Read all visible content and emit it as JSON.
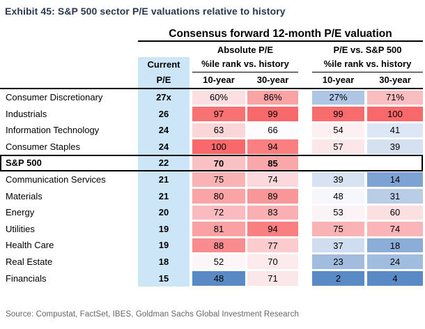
{
  "exhibit_title": "Exhibit 45: S&P 500 sector P/E valuations relative to history",
  "source": "Source: Compustat, FactSet, IBES, Goldman Sachs Global Investment Research",
  "colors": {
    "title": "#28394E",
    "source_text": "#63666A",
    "current_pe_bg": "#CCE6F8",
    "scale_low": "#5A8AC6",
    "scale_mid": "#FCFCFF",
    "scale_high": "#F8696B"
  },
  "chart_data": {
    "type": "table",
    "title": "Consensus forward 12-month P/E valuation",
    "group_headers": [
      "Absolute P/E",
      "P/E vs. S&P 500"
    ],
    "current_pe_header": [
      "Current",
      "P/E"
    ],
    "pctile_header": "%ile rank vs. history",
    "column_keys": [
      "abs_10yr",
      "abs_30yr",
      "vs_10yr",
      "vs_30yr"
    ],
    "column_labels": [
      "10-year",
      "30-year",
      "10-year",
      "30-year"
    ],
    "color_scales": {
      "abs_10yr": {
        "min": 48,
        "mid": 50,
        "max": 100
      },
      "abs_30yr": {
        "min": 66,
        "mid": 66,
        "max": 99
      },
      "vs_10yr": {
        "min": 2,
        "mid": 50,
        "max": 100
      },
      "vs_30yr": {
        "min": 4,
        "mid": 50,
        "max": 100
      }
    },
    "rows": [
      {
        "sector": "Consumer Discretionary",
        "current_pe": "27x",
        "highlight": false,
        "cells": [
          {
            "text": "60%",
            "value": 60
          },
          {
            "text": "86%",
            "value": 86
          },
          {
            "text": "27%",
            "value": 27
          },
          {
            "text": "71%",
            "value": 71
          }
        ]
      },
      {
        "sector": "Industrials",
        "current_pe": "26",
        "highlight": false,
        "cells": [
          {
            "text": "97",
            "value": 97
          },
          {
            "text": "99",
            "value": 99
          },
          {
            "text": "99",
            "value": 99
          },
          {
            "text": "100",
            "value": 100
          }
        ]
      },
      {
        "sector": "Information Technology",
        "current_pe": "24",
        "highlight": false,
        "cells": [
          {
            "text": "63",
            "value": 63
          },
          {
            "text": "66",
            "value": 66
          },
          {
            "text": "54",
            "value": 54
          },
          {
            "text": "41",
            "value": 41
          }
        ]
      },
      {
        "sector": "Consumer Staples",
        "current_pe": "24",
        "highlight": false,
        "cells": [
          {
            "text": "100",
            "value": 100
          },
          {
            "text": "94",
            "value": 94
          },
          {
            "text": "57",
            "value": 57
          },
          {
            "text": "39",
            "value": 39
          }
        ]
      },
      {
        "sector": "S&P 500",
        "current_pe": "22",
        "highlight": true,
        "cells": [
          {
            "text": "70",
            "value": 70
          },
          {
            "text": "85",
            "value": 85
          },
          null,
          null
        ]
      },
      {
        "sector": "Communication Services",
        "current_pe": "21",
        "highlight": false,
        "cells": [
          {
            "text": "75",
            "value": 75
          },
          {
            "text": "74",
            "value": 74
          },
          {
            "text": "39",
            "value": 39
          },
          {
            "text": "14",
            "value": 14
          }
        ]
      },
      {
        "sector": "Materials",
        "current_pe": "21",
        "highlight": false,
        "cells": [
          {
            "text": "80",
            "value": 80
          },
          {
            "text": "89",
            "value": 89
          },
          {
            "text": "48",
            "value": 48
          },
          {
            "text": "31",
            "value": 31
          }
        ]
      },
      {
        "sector": "Energy",
        "current_pe": "20",
        "highlight": false,
        "cells": [
          {
            "text": "72",
            "value": 72
          },
          {
            "text": "83",
            "value": 83
          },
          {
            "text": "53",
            "value": 53
          },
          {
            "text": "60",
            "value": 60
          }
        ]
      },
      {
        "sector": "Utilities",
        "current_pe": "19",
        "highlight": false,
        "cells": [
          {
            "text": "81",
            "value": 81
          },
          {
            "text": "94",
            "value": 94
          },
          {
            "text": "75",
            "value": 75
          },
          {
            "text": "74",
            "value": 74
          }
        ]
      },
      {
        "sector": "Health Care",
        "current_pe": "19",
        "highlight": false,
        "cells": [
          {
            "text": "88",
            "value": 88
          },
          {
            "text": "77",
            "value": 77
          },
          {
            "text": "37",
            "value": 37
          },
          {
            "text": "18",
            "value": 18
          }
        ]
      },
      {
        "sector": "Real Estate",
        "current_pe": "18",
        "highlight": false,
        "cells": [
          {
            "text": "52",
            "value": 52
          },
          {
            "text": "70",
            "value": 70
          },
          {
            "text": "23",
            "value": 23
          },
          {
            "text": "24",
            "value": 24
          }
        ]
      },
      {
        "sector": "Financials",
        "current_pe": "15",
        "highlight": false,
        "cells": [
          {
            "text": "48",
            "value": 48
          },
          {
            "text": "71",
            "value": 71
          },
          {
            "text": "2",
            "value": 2
          },
          {
            "text": "4",
            "value": 4
          }
        ]
      }
    ]
  }
}
